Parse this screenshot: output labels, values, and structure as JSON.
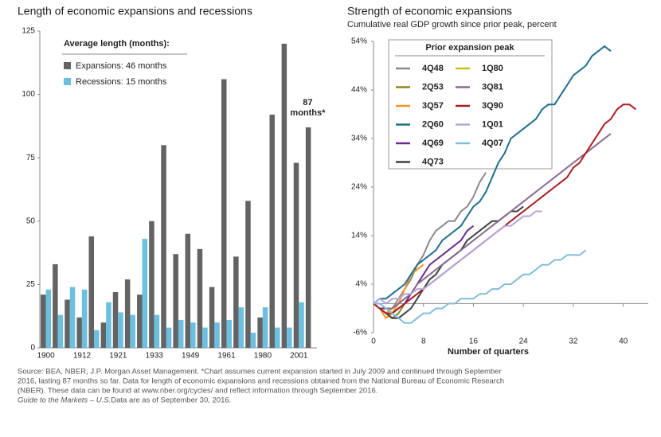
{
  "chart_data": [
    {
      "type": "bar",
      "title": "Length of economic expansions and recessions",
      "legend_title": "Average length (months):",
      "categories": [
        "1900",
        null,
        null,
        "1912",
        null,
        null,
        "1921",
        null,
        null,
        "1933",
        null,
        null,
        "1949",
        null,
        null,
        "1961",
        null,
        null,
        "1980",
        null,
        null,
        "2001",
        null
      ],
      "series": [
        {
          "name": "Expansions: 46 months",
          "color": "#636363",
          "values": [
            21,
            33,
            19,
            12,
            44,
            10,
            22,
            27,
            21,
            50,
            80,
            37,
            45,
            39,
            24,
            106,
            36,
            58,
            12,
            92,
            120,
            73,
            87
          ]
        },
        {
          "name": "Recessions: 15 months",
          "color": "#6cbfde",
          "values": [
            23,
            13,
            24,
            23,
            7,
            18,
            14,
            13,
            43,
            13,
            8,
            11,
            10,
            8,
            10,
            11,
            16,
            6,
            16,
            8,
            8,
            18,
            null
          ]
        }
      ],
      "annotation": [
        "87",
        "months*"
      ],
      "ylim": [
        0,
        125
      ],
      "yticks": [
        0,
        25,
        50,
        75,
        100,
        125
      ]
    },
    {
      "type": "line",
      "title": "Strength of economic expansions",
      "subtitle": "Cumulative real GDP growth since prior peak, percent",
      "legend_title": "Prior expansion peak",
      "x_label": "Number of quarters",
      "x": [
        0,
        1,
        2,
        3,
        4,
        5,
        6,
        7,
        8,
        9,
        10,
        11,
        12,
        13,
        14,
        15,
        16,
        17,
        18,
        19,
        20,
        21,
        22,
        23,
        24,
        25,
        26,
        27,
        28,
        29,
        30,
        31,
        32,
        33,
        34,
        35,
        36,
        37,
        38,
        39,
        40,
        41,
        42
      ],
      "series": [
        {
          "name": "4Q48",
          "color": "#8a8a8a",
          "values": [
            0,
            -1,
            -2,
            -1,
            1,
            3,
            5,
            8,
            10,
            13,
            15,
            16,
            17,
            17,
            19,
            20,
            22,
            25,
            27,
            null,
            null,
            null,
            null,
            null,
            null,
            null,
            null,
            null,
            null,
            null,
            null,
            null,
            null,
            null,
            null,
            null,
            null,
            null,
            null,
            null,
            null,
            null,
            null
          ]
        },
        {
          "name": "2Q53",
          "color": "#8c8a1e",
          "values": [
            0,
            -1,
            -2,
            -3,
            -2,
            0,
            null,
            null,
            null,
            null,
            null,
            null,
            null,
            null,
            null,
            null,
            null,
            null,
            null,
            null,
            null,
            null,
            null,
            null,
            null,
            null,
            null,
            null,
            null,
            null,
            null,
            null,
            null,
            null,
            null,
            null,
            null,
            null,
            null,
            null,
            null,
            null,
            null
          ]
        },
        {
          "name": "3Q57",
          "color": "#f7941d",
          "values": [
            0,
            -1,
            -3,
            -2,
            0,
            3,
            6,
            7,
            8,
            null,
            null,
            null,
            null,
            null,
            null,
            null,
            null,
            null,
            null,
            null,
            null,
            null,
            null,
            null,
            null,
            null,
            null,
            null,
            null,
            null,
            null,
            null,
            null,
            null,
            null,
            null,
            null,
            null,
            null,
            null,
            null,
            null,
            null
          ]
        },
        {
          "name": "2Q60",
          "color": "#1f6e8c",
          "values": [
            0,
            1,
            1,
            2,
            3,
            4,
            6,
            8,
            9,
            10,
            11,
            13,
            14,
            15,
            16,
            18,
            20,
            21,
            23,
            26,
            29,
            31,
            34,
            35,
            36,
            37,
            38,
            40,
            41,
            41,
            43,
            45,
            47,
            48,
            49,
            51,
            52,
            53,
            52,
            null,
            null,
            null,
            null
          ]
        },
        {
          "name": "4Q69",
          "color": "#6a2c91",
          "values": [
            0,
            -1,
            -1,
            -2,
            -1,
            0,
            2,
            4,
            6,
            8,
            9,
            10,
            11,
            12,
            13,
            15,
            16,
            null,
            null,
            null,
            null,
            null,
            null,
            null,
            null,
            null,
            null,
            null,
            null,
            null,
            null,
            null,
            null,
            null,
            null,
            null,
            null,
            null,
            null,
            null,
            null,
            null,
            null
          ]
        },
        {
          "name": "4Q73",
          "color": "#404040",
          "values": [
            0,
            -1,
            -2,
            -3,
            -3,
            -2,
            -1,
            1,
            3,
            5,
            6,
            8,
            9,
            10,
            11,
            13,
            14,
            15,
            16,
            17,
            17,
            18,
            19,
            19,
            20,
            null,
            null,
            null,
            null,
            null,
            null,
            null,
            null,
            null,
            null,
            null,
            null,
            null,
            null,
            null,
            null,
            null,
            null
          ]
        },
        {
          "name": "1Q80",
          "color": "#c8c21a",
          "values": [
            0,
            -1,
            -2,
            -1,
            null,
            null,
            null,
            null,
            null,
            null,
            null,
            null,
            null,
            null,
            null,
            null,
            null,
            null,
            null,
            null,
            null,
            null,
            null,
            null,
            null,
            null,
            null,
            null,
            null,
            null,
            null,
            null,
            null,
            null,
            null,
            null,
            null,
            null,
            null,
            null,
            null,
            null,
            null
          ]
        },
        {
          "name": "3Q81",
          "color": "#8a6a8e",
          "values": [
            0,
            0,
            -1,
            -1,
            0,
            1,
            2,
            4,
            5,
            6,
            7,
            8,
            9,
            10,
            11,
            12,
            13,
            14,
            15,
            16,
            17,
            18,
            19,
            20,
            21,
            22,
            23,
            24,
            25,
            26,
            27,
            28,
            29,
            30,
            31,
            32,
            33,
            34,
            35,
            null,
            null,
            null,
            null
          ]
        },
        {
          "name": "3Q90",
          "color": "#a81e22",
          "values": [
            0,
            -1,
            -2,
            -2,
            -1,
            0,
            1,
            2,
            3,
            4,
            5,
            6,
            7,
            8,
            9,
            10,
            11,
            12,
            13,
            14,
            15,
            16,
            17,
            18,
            19,
            20,
            21,
            22,
            23,
            24,
            25,
            26,
            28,
            29,
            31,
            33,
            35,
            37,
            38,
            40,
            41,
            41,
            40
          ]
        },
        {
          "name": "1Q01",
          "color": "#b3a6dc",
          "values": [
            0,
            1,
            0,
            1,
            1,
            2,
            2,
            3,
            3,
            4,
            5,
            6,
            7,
            8,
            9,
            10,
            11,
            12,
            13,
            14,
            15,
            16,
            16,
            17,
            18,
            18,
            19,
            19,
            null,
            null,
            null,
            null,
            null,
            null,
            null,
            null,
            null,
            null,
            null,
            null,
            null,
            null,
            null
          ]
        },
        {
          "name": "4Q07",
          "color": "#82bcd8",
          "values": [
            0,
            0,
            -1,
            -2,
            -3,
            -4,
            -4,
            -3,
            -2,
            -2,
            -1,
            -1,
            0,
            0,
            1,
            1,
            1,
            2,
            2,
            3,
            3,
            4,
            4,
            5,
            6,
            6,
            7,
            8,
            8,
            9,
            9,
            10,
            10,
            10,
            11,
            null,
            null,
            null,
            null,
            null,
            null,
            null,
            null
          ]
        }
      ],
      "xlim": [
        0,
        44
      ],
      "xticks": [
        0,
        8,
        16,
        24,
        32,
        40
      ],
      "ylim": [
        -6,
        54
      ],
      "yticks": [
        {
          "value": -6,
          "label": "-6%"
        },
        {
          "value": 4,
          "label": "4%"
        },
        {
          "value": 14,
          "label": "14%"
        },
        {
          "value": 24,
          "label": "24%"
        },
        {
          "value": 34,
          "label": "34%"
        },
        {
          "value": 44,
          "label": "44%"
        },
        {
          "value": 54,
          "label": "54%"
        }
      ]
    }
  ],
  "footer": [
    "Source: BEA, NBER, J.P. Morgan Asset Management. *Chart assumes current expansion started in July 2009 and continued through September",
    "2016, lasting 87 months so far. Data for length of economic expansions and recessions obtained from the National Bureau of Economic Research",
    "(NBER). These data can be found at www.nber.org/cycles/ and reflect information through September 2016."
  ],
  "footer_italic": "Guide to the Markets – U.S.",
  "footer_end": " Data are as of September 30, 2016."
}
